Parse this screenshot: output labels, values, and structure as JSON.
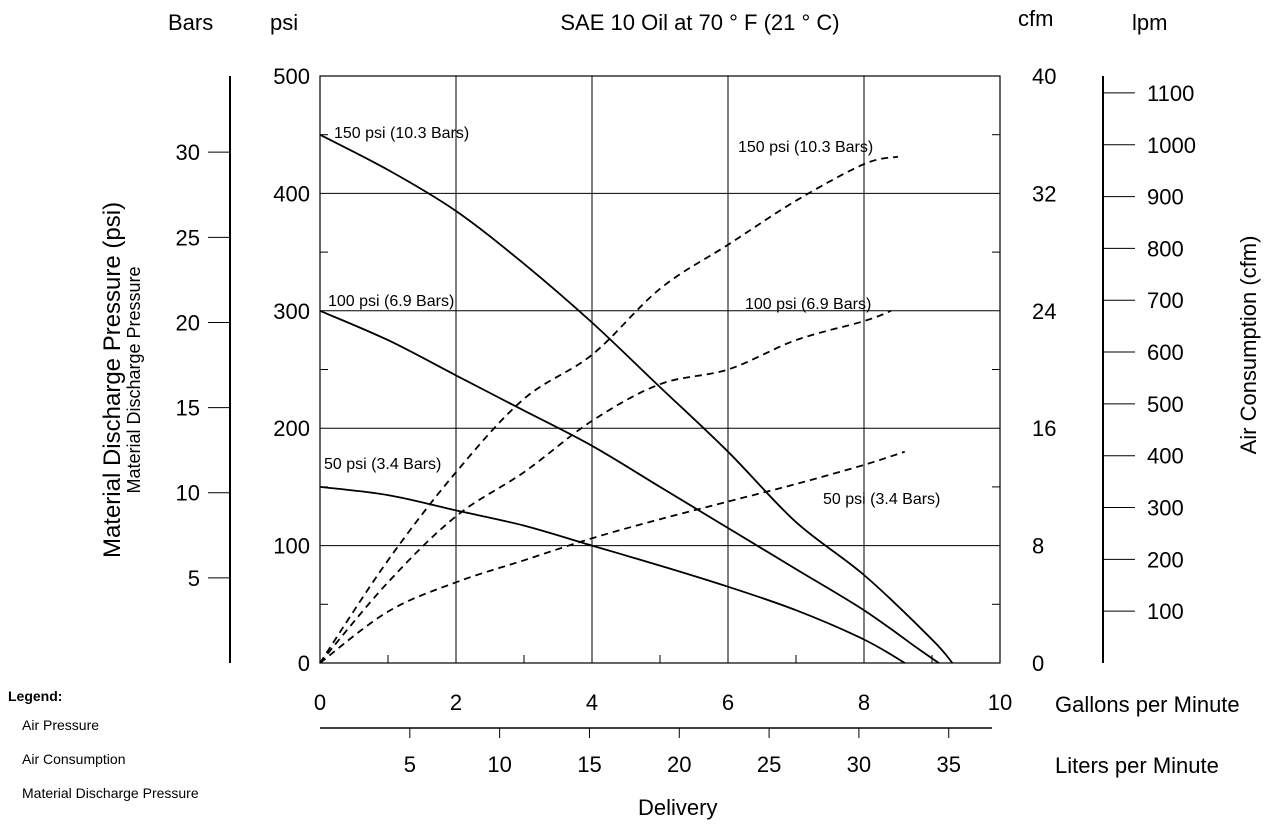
{
  "chart_data": {
    "type": "line",
    "title": "SAE 10 Oil at 70 ° F (21 ° C)",
    "axes": {
      "left_outer": {
        "unit_label": "Bars",
        "title": "Material Discharge Pressure (psi)",
        "subtitle": "Material Discharge Pressure",
        "ticks": [
          5,
          10,
          15,
          20,
          25,
          30
        ]
      },
      "left": {
        "unit_label": "psi",
        "range": [
          0,
          500
        ],
        "ticks": [
          0,
          100,
          200,
          300,
          400,
          500
        ]
      },
      "right": {
        "unit_label": "cfm",
        "range": [
          0,
          40
        ],
        "ticks": [
          0,
          8,
          16,
          24,
          32,
          40
        ]
      },
      "right_outer": {
        "unit_label": "lpm",
        "title": "Air Consumption (cfm)",
        "ticks": [
          100,
          200,
          300,
          400,
          500,
          600,
          700,
          800,
          900,
          1000,
          1100
        ]
      },
      "bottom": {
        "unit_label": "Gallons per Minute",
        "range": [
          0,
          10
        ],
        "ticks": [
          0,
          2,
          4,
          6,
          8,
          10
        ]
      },
      "bottom_secondary": {
        "unit_label": "Liters per Minute",
        "ticks": [
          5,
          10,
          15,
          20,
          25,
          30,
          35
        ]
      },
      "xlabel": "Delivery"
    },
    "grid": true,
    "series": [
      {
        "name": "150 psi (10.3 Bars)",
        "kind": "material",
        "style": "solid",
        "x": [
          0,
          1,
          2,
          3,
          4,
          5,
          6,
          7,
          8,
          9,
          9.3
        ],
        "y": [
          450,
          420,
          385,
          340,
          290,
          235,
          180,
          120,
          75,
          20,
          0
        ]
      },
      {
        "name": "100 psi (6.9 Bars)",
        "kind": "material",
        "style": "solid",
        "x": [
          0,
          1,
          2,
          3,
          4,
          5,
          6,
          7,
          8,
          8.8,
          9.1
        ],
        "y": [
          300,
          275,
          245,
          215,
          185,
          150,
          115,
          80,
          45,
          12,
          0
        ]
      },
      {
        "name": "50 psi (3.4 Bars)",
        "kind": "material",
        "style": "solid",
        "x": [
          0,
          1,
          2,
          3,
          4,
          5,
          6,
          7,
          8,
          8.6
        ],
        "y": [
          150,
          143,
          130,
          117,
          100,
          83,
          65,
          45,
          20,
          0
        ]
      },
      {
        "name": "150 psi (10.3 Bars)",
        "kind": "air",
        "style": "dashed",
        "x": [
          0,
          1,
          2,
          3,
          4,
          5,
          6,
          7,
          8,
          8.5
        ],
        "y_cfm": [
          0,
          7,
          13,
          18,
          21,
          25.5,
          28.5,
          31.5,
          34,
          34.5
        ]
      },
      {
        "name": "100 psi (6.9 Bars)",
        "kind": "air",
        "style": "dashed",
        "x": [
          0,
          1,
          2,
          3,
          4,
          5,
          6,
          7,
          8,
          8.4
        ],
        "y_cfm": [
          0,
          5.5,
          10,
          13,
          16.5,
          19,
          20,
          22,
          23.3,
          24
        ]
      },
      {
        "name": "50 psi (3.4 Bars)",
        "kind": "air",
        "style": "dashed",
        "x": [
          0,
          1,
          2,
          3,
          4,
          5,
          6,
          7,
          8,
          8.6
        ],
        "y_cfm": [
          0,
          3.5,
          5.5,
          7,
          8.5,
          9.8,
          11,
          12.2,
          13.5,
          14.4
        ]
      }
    ]
  },
  "series_labels": {
    "mat150": "150 psi (10.3 Bars)",
    "mat100": "100 psi (6.9 Bars)",
    "mat50": "50 psi (3.4 Bars)",
    "air150": "150 psi (10.3 Bars)",
    "air100": "100 psi (6.9 Bars)",
    "air50": "50 psi (3.4 Bars)"
  },
  "legend": {
    "title": "Legend:",
    "items": [
      "Air Pressure",
      "Air Consumption",
      "Material Discharge Pressure"
    ]
  }
}
